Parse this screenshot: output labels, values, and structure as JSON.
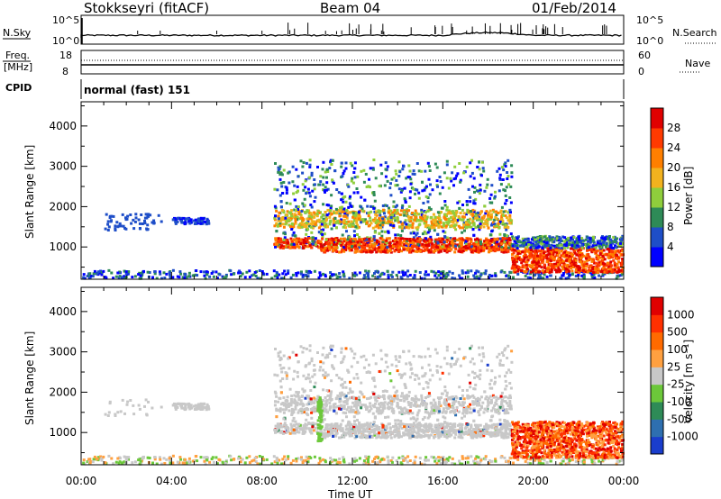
{
  "header": {
    "station": "Stokkseyri (fitACF)",
    "beam": "Beam 04",
    "date": "01/Feb/2014"
  },
  "noise_panel": {
    "left_label": "N.Sky",
    "right_label": "N.Search",
    "left_ticks": [
      "10^5",
      "10^0"
    ],
    "right_ticks": [
      "10^5",
      "10^0"
    ]
  },
  "freq_panel": {
    "left_label_1": "Freq.",
    "left_label_2": "[MHz]",
    "right_label": "Nave",
    "left_ticks": [
      "18",
      "8"
    ],
    "right_ticks": [
      "60",
      "0"
    ]
  },
  "cpid": {
    "label": "CPID",
    "value": "normal (fast) 151"
  },
  "chart_data": [
    {
      "type": "heatmap",
      "name": "power",
      "ylabel": "Slant Range [km]",
      "yticks": [
        "1000",
        "2000",
        "3000",
        "4000"
      ],
      "ylim": [
        200,
        4600
      ],
      "colorbar_label": "Power [dB]",
      "colorbar_ticks": [
        "4",
        "8",
        "12",
        "16",
        "20",
        "24",
        "28"
      ],
      "colors": [
        "#0000ff",
        "#1e4ec8",
        "#2e8b57",
        "#8fce3c",
        "#f2b21e",
        "#ff7f00",
        "#ff3a00",
        "#e00000"
      ],
      "xlim": [
        0,
        24
      ]
    },
    {
      "type": "heatmap",
      "name": "velocity",
      "ylabel": "Slant Range [km]",
      "yticks": [
        "1000",
        "2000",
        "3000",
        "4000"
      ],
      "ylim": [
        200,
        4600
      ],
      "colorbar_label": "Velocity [m s⁻¹]",
      "colorbar_ticks": [
        "1000",
        "500",
        "100",
        "25",
        "-25",
        "-100",
        "-500",
        "-1000"
      ],
      "colors": [
        "#1a3dcc",
        "#2e6fb0",
        "#2e8b57",
        "#6cc83a",
        "#c8c8c8",
        "#ffa040",
        "#ff6a00",
        "#ff3000",
        "#e00000"
      ],
      "xlim": [
        0,
        24
      ]
    }
  ],
  "time_axis": {
    "label": "Time UT",
    "ticks": [
      "00:00",
      "04:00",
      "08:00",
      "12:00",
      "16:00",
      "20:00",
      "00:00"
    ]
  }
}
